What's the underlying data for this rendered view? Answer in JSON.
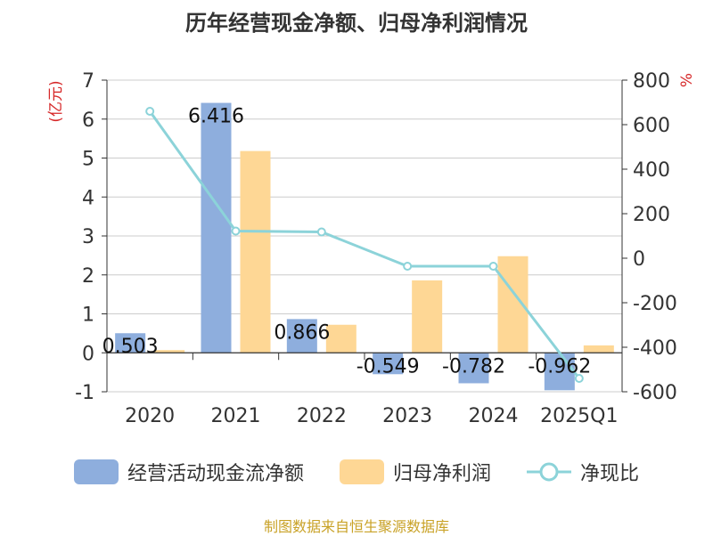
{
  "chart_data": {
    "type": "bar",
    "title": "历年经营现金净额、归母净利润情况",
    "categories": [
      "2020",
      "2021",
      "2022",
      "2023",
      "2024",
      "2025Q1"
    ],
    "series": [
      {
        "name": "经营活动现金流净额",
        "kind": "bar",
        "axis": "left",
        "color": "#8eaedd",
        "values": [
          0.503,
          6.416,
          0.866,
          -0.549,
          -0.782,
          -0.962
        ],
        "labels": [
          "0.503",
          "6.416",
          "0.866",
          "-0.549",
          "-0.782",
          "-0.962"
        ]
      },
      {
        "name": "归母净利润",
        "kind": "bar",
        "axis": "left",
        "color": "#fed795",
        "values": [
          0.07,
          5.18,
          0.72,
          1.86,
          2.48,
          0.19
        ]
      },
      {
        "name": "净现比",
        "kind": "line",
        "axis": "right",
        "color": "#8cd3d9",
        "values": [
          660,
          122,
          118,
          -36,
          -36,
          -540
        ]
      }
    ],
    "ylabel_left": "(亿元)",
    "ylabel_right": "%",
    "ylim_left": [
      -1,
      7
    ],
    "yticks_left": [
      -1,
      0,
      1,
      2,
      3,
      4,
      5,
      6,
      7
    ],
    "ylim_right": [
      -600,
      800
    ],
    "yticks_right": [
      -600,
      -400,
      -200,
      0,
      200,
      400,
      600,
      800
    ],
    "grid": true,
    "legend_position": "bottom"
  },
  "source": "制图数据来自恒生聚源数据库"
}
